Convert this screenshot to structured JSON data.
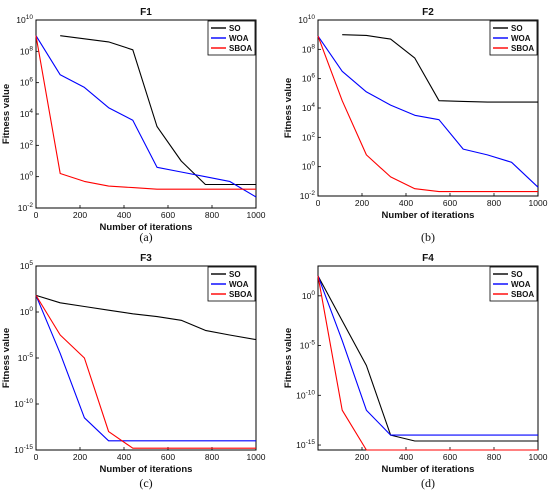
{
  "chart_data": [
    {
      "type": "line",
      "panel": "(a)",
      "title": "F1",
      "xlabel": "Number of iterations",
      "ylabel": "Fitness value",
      "xlim": [
        0,
        1000
      ],
      "ylog_exp": [
        -2,
        10
      ],
      "xticks": [
        0,
        200,
        400,
        600,
        800,
        1000
      ],
      "yticks": [
        -2,
        0,
        2,
        4,
        6,
        8,
        10
      ],
      "legend_position": "top-right",
      "series": [
        {
          "name": "SO",
          "color": "#000000",
          "x": [
            110,
            220,
            330,
            440,
            550,
            660,
            770,
            880,
            1000
          ],
          "y": [
            9,
            8.8,
            8.6,
            8.1,
            3.2,
            1.0,
            -0.5,
            -0.5,
            -0.5
          ]
        },
        {
          "name": "WOA",
          "color": "#0000ff",
          "x": [
            0,
            110,
            220,
            330,
            440,
            550,
            660,
            770,
            880,
            1000
          ],
          "y": [
            9,
            6.5,
            5.7,
            4.4,
            3.6,
            0.6,
            0.3,
            0.0,
            -0.3,
            -1.3
          ]
        },
        {
          "name": "SBOA",
          "color": "#ff0000",
          "x": [
            0,
            110,
            220,
            330,
            440,
            550,
            660,
            770,
            880,
            1000
          ],
          "y": [
            9,
            0.2,
            -0.3,
            -0.6,
            -0.7,
            -0.8,
            -0.8,
            -0.8,
            -0.8,
            -0.8
          ]
        }
      ]
    },
    {
      "type": "line",
      "panel": "(b)",
      "title": "F2",
      "xlabel": "Number of iterations",
      "ylabel": "Fitness value",
      "xlim": [
        0,
        1000
      ],
      "ylog_exp": [
        -2,
        10
      ],
      "xticks": [
        0,
        200,
        400,
        600,
        800,
        1000
      ],
      "yticks": [
        -2,
        0,
        2,
        4,
        6,
        8,
        10
      ],
      "legend_position": "top-right",
      "series": [
        {
          "name": "SO",
          "color": "#000000",
          "x": [
            110,
            220,
            330,
            440,
            550,
            660,
            770,
            880,
            1000
          ],
          "y": [
            9,
            8.95,
            8.7,
            7.4,
            4.5,
            4.45,
            4.4,
            4.4,
            4.4
          ]
        },
        {
          "name": "WOA",
          "color": "#0000ff",
          "x": [
            0,
            110,
            220,
            330,
            440,
            550,
            660,
            770,
            880,
            1000
          ],
          "y": [
            8.9,
            6.5,
            5.1,
            4.2,
            3.5,
            3.2,
            1.2,
            0.8,
            0.3,
            -1.4
          ]
        },
        {
          "name": "SBOA",
          "color": "#ff0000",
          "x": [
            0,
            110,
            220,
            330,
            440,
            550,
            660,
            770,
            880,
            1000
          ],
          "y": [
            8.9,
            4.5,
            0.8,
            -0.7,
            -1.5,
            -1.7,
            -1.7,
            -1.7,
            -1.7,
            -1.7
          ]
        }
      ]
    },
    {
      "type": "line",
      "panel": "(c)",
      "title": "F3",
      "xlabel": "Number of iterations",
      "ylabel": "Fitness value",
      "xlim": [
        0,
        1000
      ],
      "ylog_exp": [
        -15,
        5
      ],
      "xticks": [
        0,
        200,
        400,
        600,
        800,
        1000
      ],
      "yticks": [
        -15,
        -10,
        -5,
        0,
        5
      ],
      "legend_position": "top-right",
      "series": [
        {
          "name": "SO",
          "color": "#000000",
          "x": [
            0,
            110,
            220,
            330,
            440,
            550,
            660,
            770,
            880,
            1000
          ],
          "y": [
            1.8,
            1.0,
            0.6,
            0.2,
            -0.2,
            -0.5,
            -0.9,
            -2.0,
            -2.5,
            -3.0
          ]
        },
        {
          "name": "WOA",
          "color": "#0000ff",
          "x": [
            0,
            110,
            220,
            330,
            440,
            550,
            660,
            770,
            880,
            1000
          ],
          "y": [
            1.8,
            -4.5,
            -11.5,
            -14.0,
            -14.0,
            -14.0,
            -14.0,
            -14.0,
            -14.0,
            -14.0
          ]
        },
        {
          "name": "SBOA",
          "color": "#ff0000",
          "x": [
            0,
            110,
            220,
            330,
            440,
            550,
            660,
            770,
            880,
            1000
          ],
          "y": [
            1.8,
            -2.5,
            -5.0,
            -13.0,
            -14.8,
            -14.8,
            -14.8,
            -14.8,
            -14.8,
            -14.8
          ]
        }
      ]
    },
    {
      "type": "line",
      "panel": "(d)",
      "title": "F4",
      "xlabel": "Number of iterations",
      "ylabel": "Fitness value",
      "xlim": [
        0,
        1000
      ],
      "ylog_exp": [
        -15.5,
        3
      ],
      "xticks": [
        200,
        400,
        600,
        800,
        1000
      ],
      "yticks": [
        -15,
        -10,
        -5,
        0
      ],
      "legend_position": "top-right",
      "series": [
        {
          "name": "SO",
          "color": "#000000",
          "x": [
            0,
            110,
            220,
            330,
            440,
            550,
            660,
            770,
            880,
            1000
          ],
          "y": [
            2.0,
            -2.5,
            -7.0,
            -14.0,
            -14.6,
            -14.6,
            -14.6,
            -14.6,
            -14.6,
            -14.6
          ]
        },
        {
          "name": "WOA",
          "color": "#0000ff",
          "x": [
            0,
            110,
            220,
            330,
            440,
            550,
            660,
            770,
            880,
            1000
          ],
          "y": [
            2.0,
            -4.5,
            -11.5,
            -14.0,
            -14.0,
            -14.0,
            -14.0,
            -14.0,
            -14.0,
            -14.0
          ]
        },
        {
          "name": "SBOA",
          "color": "#ff0000",
          "x": [
            0,
            110,
            220,
            330,
            440,
            550,
            660,
            770,
            880,
            1000
          ],
          "y": [
            2.0,
            -11.5,
            -15.5,
            -15.5,
            -15.5,
            -15.5,
            -15.5,
            -15.5,
            -15.5,
            -15.5
          ]
        }
      ]
    }
  ]
}
